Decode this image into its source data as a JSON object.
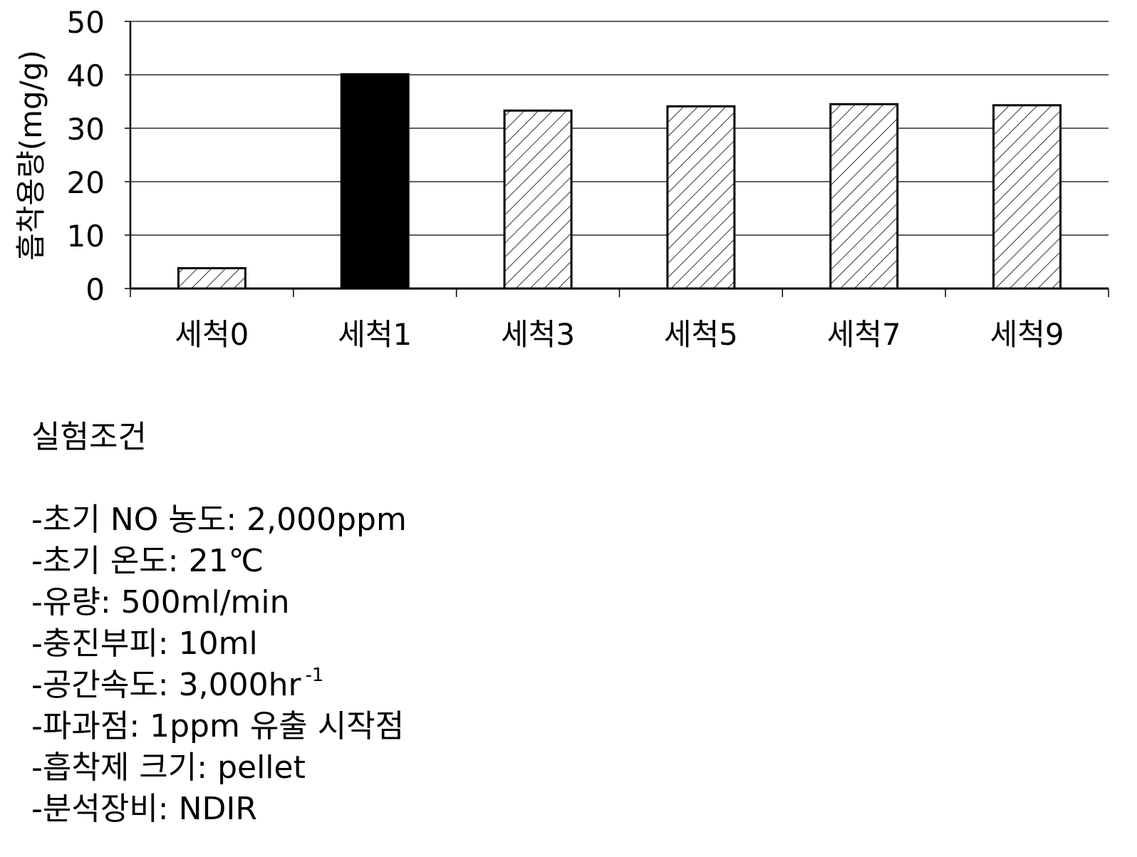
{
  "chart_data": {
    "type": "bar",
    "ylabel": "흡착용량(mg/g)",
    "ylim": [
      0,
      50
    ],
    "yticks": [
      0,
      10,
      20,
      30,
      40,
      50
    ],
    "grid": true,
    "categories": [
      "세척0",
      "세척1",
      "세척3",
      "세척5",
      "세척7",
      "세척9"
    ],
    "values": [
      3.8,
      40.1,
      33.3,
      34.1,
      34.5,
      34.3
    ],
    "fills": [
      "hatched",
      "solid",
      "hatched",
      "hatched",
      "hatched",
      "hatched"
    ]
  },
  "conditions": {
    "title": "실험조건",
    "items": [
      {
        "text": "-초기 NO 농도: 2,000ppm",
        "sup": ""
      },
      {
        "text": "-초기 온도: 21℃",
        "sup": ""
      },
      {
        "text": "-유량: 500ml/min",
        "sup": ""
      },
      {
        "text": "-충진부피: 10ml",
        "sup": ""
      },
      {
        "text": "-공간속도: 3,000hr",
        "sup": "-1"
      },
      {
        "text": "-파과점: 1ppm 유출 시작점",
        "sup": ""
      },
      {
        "text": "-흡착제 크기: pellet",
        "sup": ""
      },
      {
        "text": "-분석장비: NDIR",
        "sup": ""
      }
    ]
  },
  "colors": {
    "bar_stroke": "#000000",
    "solid_fill": "#000000",
    "hatch": "#000000",
    "grid": "#000000",
    "background": "#ffffff"
  }
}
